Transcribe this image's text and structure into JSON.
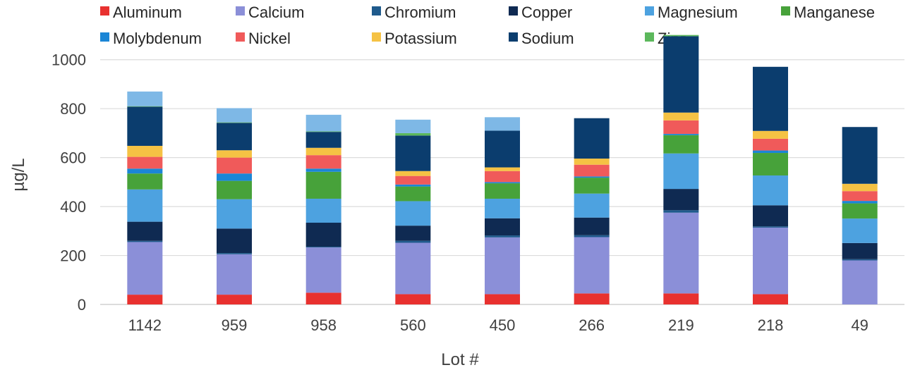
{
  "chart_data": {
    "type": "bar",
    "stacked": true,
    "title": "",
    "xlabel": "Lot #",
    "ylabel": "µg/L",
    "ylim": [
      0,
      1100
    ],
    "yticks": [
      0,
      200,
      400,
      600,
      800,
      1000
    ],
    "grid": true,
    "legend_position": "top",
    "categories": [
      "1142",
      "959",
      "958",
      "560",
      "450",
      "266",
      "219",
      "218",
      "49"
    ],
    "series": [
      {
        "name": "Aluminum",
        "color": "#e8312f",
        "values": [
          40,
          40,
          48,
          42,
          42,
          45,
          45,
          42,
          0
        ]
      },
      {
        "name": "Calcium",
        "color": "#8b8fd8",
        "values": [
          215,
          165,
          185,
          210,
          232,
          230,
          330,
          272,
          180
        ]
      },
      {
        "name": "Chromium",
        "color": "#1f5a8c",
        "values": [
          5,
          5,
          3,
          8,
          8,
          8,
          10,
          5,
          5
        ]
      },
      {
        "name": "Copper",
        "color": "#0f2a52",
        "values": [
          78,
          100,
          98,
          62,
          70,
          72,
          87,
          86,
          66
        ]
      },
      {
        "name": "Magnesium",
        "color": "#4da2e0",
        "values": [
          132,
          120,
          98,
          100,
          80,
          98,
          145,
          122,
          100
        ]
      },
      {
        "name": "Manganese",
        "color": "#47a23a",
        "values": [
          65,
          75,
          110,
          60,
          63,
          65,
          75,
          92,
          62
        ]
      },
      {
        "name": "Molybdenum",
        "color": "#1b86d6",
        "values": [
          20,
          30,
          13,
          8,
          5,
          5,
          5,
          10,
          10
        ]
      },
      {
        "name": "Nickel",
        "color": "#f05a5a",
        "values": [
          48,
          65,
          55,
          35,
          45,
          48,
          55,
          48,
          40
        ]
      },
      {
        "name": "Potassium",
        "color": "#f5c244",
        "values": [
          45,
          30,
          30,
          20,
          15,
          25,
          32,
          32,
          30
        ]
      },
      {
        "name": "Sodium",
        "color": "#0b3d6e",
        "values": [
          160,
          112,
          65,
          145,
          150,
          165,
          312,
          262,
          232
        ]
      },
      {
        "name": "Zinc",
        "color": "#5cb85c",
        "values": [
          2,
          2,
          2,
          10,
          0,
          0,
          5,
          0,
          0
        ]
      },
      {
        "name": "",
        "color": "#7eb8e6",
        "values": [
          60,
          58,
          68,
          55,
          55,
          0,
          0,
          0,
          0
        ]
      }
    ]
  }
}
